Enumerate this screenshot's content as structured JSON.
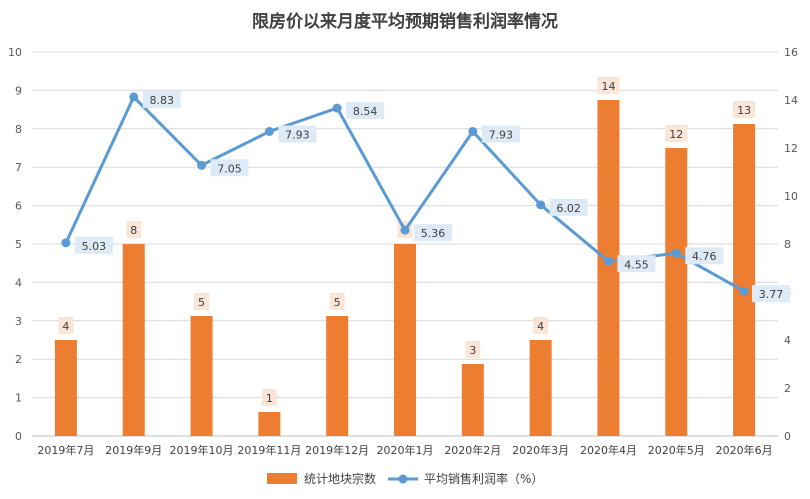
{
  "chart_data": {
    "type": "bar+line",
    "title": "限房价以来月度平均预期销售利润率情况",
    "categories": [
      "2019年7月",
      "2019年9月",
      "2019年10月",
      "2019年11月",
      "2019年12月",
      "2020年1月",
      "2020年2月",
      "2020年3月",
      "2020年4月",
      "2020年5月",
      "2020年6月"
    ],
    "series": [
      {
        "name": "统计地块宗数",
        "type": "bar",
        "axis": "right",
        "values": [
          4,
          8,
          5,
          1,
          5,
          8,
          3,
          4,
          14,
          12,
          13
        ]
      },
      {
        "name": "平均销售利润率（%）",
        "type": "line",
        "axis": "left",
        "values": [
          5.03,
          8.83,
          7.05,
          7.93,
          8.54,
          5.36,
          7.93,
          6.02,
          4.55,
          4.76,
          3.77
        ]
      }
    ],
    "y_left": {
      "min": 0,
      "max": 10,
      "step": 1,
      "ticks": [
        "0",
        "1",
        "2",
        "3",
        "4",
        "5",
        "6",
        "7",
        "8",
        "9",
        "10"
      ]
    },
    "y_right": {
      "min": 0,
      "max": 16,
      "step": 2,
      "ticks": [
        "0",
        "2",
        "4",
        "6",
        "8",
        "10",
        "12",
        "14",
        "16"
      ]
    },
    "legend": "bottom",
    "colors": {
      "bar": "#ED7D31",
      "line": "#5B9BD5",
      "bar_label_bg": "#FBE5D6",
      "line_label_bg": "#DEEBF7"
    }
  }
}
